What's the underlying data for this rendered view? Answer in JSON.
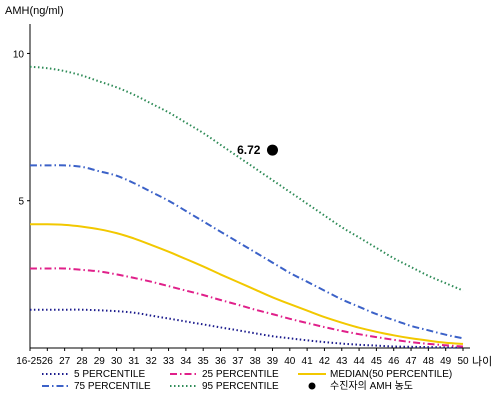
{
  "chart_data": {
    "type": "line",
    "title": "",
    "ylabel": "AMH(ng/ml)",
    "xlabel": "나이",
    "ylim": [
      0,
      11
    ],
    "y_ticks": [
      "10",
      "5"
    ],
    "categories": [
      "16-25",
      "26",
      "27",
      "28",
      "29",
      "30",
      "31",
      "32",
      "33",
      "34",
      "35",
      "36",
      "37",
      "38",
      "39",
      "40",
      "41",
      "42",
      "43",
      "44",
      "45",
      "46",
      "47",
      "48",
      "49",
      "50"
    ],
    "series": [
      {
        "name": "5 PERCENTILE",
        "color": "#1a1a8c",
        "style": "dotted",
        "values": [
          1.3,
          1.3,
          1.3,
          1.3,
          1.28,
          1.25,
          1.2,
          1.1,
          1.0,
          0.9,
          0.8,
          0.7,
          0.6,
          0.5,
          0.4,
          0.33,
          0.26,
          0.2,
          0.15,
          0.11,
          0.08,
          0.05,
          0.04,
          0.03,
          0.02,
          0.01
        ]
      },
      {
        "name": "75 PERCENTILE",
        "color": "#3c62c8",
        "style": "dashdot",
        "values": [
          6.2,
          6.2,
          6.2,
          6.15,
          6.0,
          5.85,
          5.6,
          5.3,
          5.0,
          4.65,
          4.3,
          3.95,
          3.6,
          3.25,
          2.9,
          2.55,
          2.25,
          1.95,
          1.65,
          1.4,
          1.15,
          0.95,
          0.75,
          0.6,
          0.45,
          0.33
        ]
      },
      {
        "name": "25 PERCENTILE",
        "color": "#e0208a",
        "style": "dashdot",
        "values": [
          2.7,
          2.7,
          2.7,
          2.65,
          2.6,
          2.5,
          2.38,
          2.25,
          2.1,
          1.95,
          1.8,
          1.63,
          1.47,
          1.3,
          1.15,
          0.99,
          0.85,
          0.71,
          0.58,
          0.47,
          0.37,
          0.28,
          0.2,
          0.14,
          0.09,
          0.05
        ]
      },
      {
        "name": "95 PERCENTILE",
        "color": "#2e8b57",
        "style": "dotted",
        "values": [
          9.55,
          9.5,
          9.4,
          9.25,
          9.05,
          8.85,
          8.6,
          8.3,
          8.0,
          7.65,
          7.3,
          6.9,
          6.5,
          6.1,
          5.7,
          5.3,
          4.9,
          4.5,
          4.1,
          3.75,
          3.4,
          3.05,
          2.75,
          2.45,
          2.2,
          1.95
        ]
      },
      {
        "name": "MEDIAN(50 PERCENTILE)",
        "color": "#f2c800",
        "style": "solid",
        "values": [
          4.2,
          4.2,
          4.18,
          4.12,
          4.03,
          3.9,
          3.72,
          3.5,
          3.27,
          3.02,
          2.77,
          2.5,
          2.24,
          1.98,
          1.72,
          1.49,
          1.27,
          1.05,
          0.86,
          0.69,
          0.55,
          0.43,
          0.33,
          0.25,
          0.18,
          0.14
        ]
      }
    ],
    "highlight_point": {
      "name": "수진자의 AMH 농도",
      "x": "39",
      "y": 6.72,
      "label": "6.72",
      "color": "#000000"
    },
    "grid": false,
    "legend_position": "bottom"
  }
}
